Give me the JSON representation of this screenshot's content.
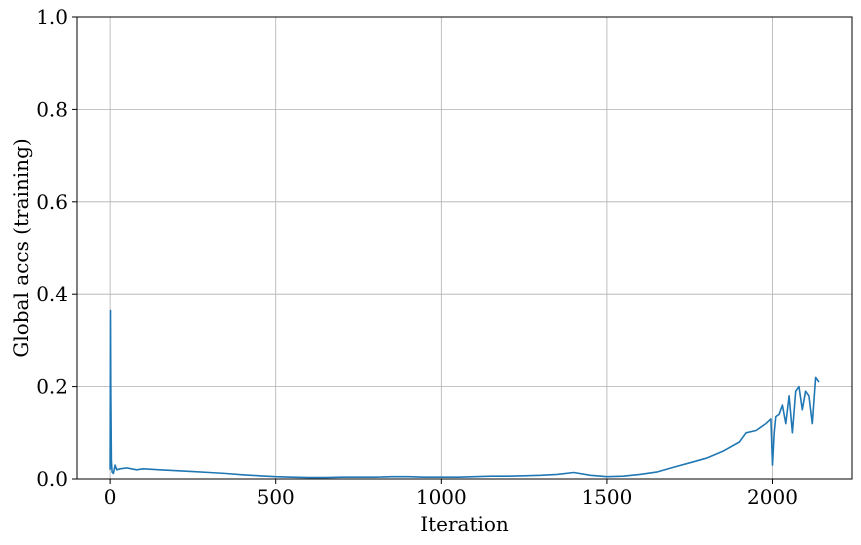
{
  "chart_data": {
    "type": "line",
    "title": "",
    "xlabel": "Iteration",
    "ylabel": "Global accs (training)",
    "xlim": [
      -100,
      2240
    ],
    "ylim": [
      0,
      1.0
    ],
    "xticks": [
      0,
      500,
      1000,
      1500,
      2000
    ],
    "xtick_labels": [
      "0",
      "500",
      "1000",
      "1500",
      "2000"
    ],
    "yticks": [
      0.0,
      0.2,
      0.4,
      0.6,
      0.8,
      1.0
    ],
    "ytick_labels": [
      "0.0",
      "0.2",
      "0.4",
      "0.6",
      "0.8",
      "1.0"
    ],
    "grid": true,
    "legend": "none",
    "line_color": "#1f77b4",
    "series": [
      {
        "x": [
          0,
          1,
          2,
          4,
          6,
          10,
          15,
          20,
          30,
          50,
          80,
          100,
          150,
          200,
          250,
          300,
          350,
          400,
          450,
          500,
          550,
          600,
          650,
          700,
          750,
          800,
          850,
          900,
          950,
          1000,
          1050,
          1100,
          1150,
          1200,
          1250,
          1300,
          1350,
          1400,
          1450,
          1500,
          1550,
          1600,
          1650,
          1700,
          1750,
          1800,
          1850,
          1900,
          1920,
          1950,
          1980,
          1995,
          2000,
          2005,
          2010,
          2020,
          2030,
          2040,
          2050,
          2060,
          2070,
          2080,
          2090,
          2100,
          2110,
          2120,
          2130,
          2140
        ],
        "y": [
          0.02,
          0.365,
          0.2,
          0.04,
          0.015,
          0.012,
          0.03,
          0.02,
          0.022,
          0.024,
          0.02,
          0.022,
          0.02,
          0.018,
          0.016,
          0.014,
          0.012,
          0.009,
          0.007,
          0.005,
          0.004,
          0.003,
          0.003,
          0.004,
          0.004,
          0.004,
          0.005,
          0.005,
          0.004,
          0.004,
          0.004,
          0.005,
          0.006,
          0.006,
          0.007,
          0.008,
          0.01,
          0.014,
          0.008,
          0.005,
          0.006,
          0.01,
          0.015,
          0.025,
          0.035,
          0.045,
          0.06,
          0.08,
          0.1,
          0.105,
          0.12,
          0.13,
          0.03,
          0.1,
          0.135,
          0.14,
          0.16,
          0.12,
          0.18,
          0.1,
          0.19,
          0.2,
          0.15,
          0.19,
          0.18,
          0.12,
          0.22,
          0.21
        ]
      }
    ]
  }
}
